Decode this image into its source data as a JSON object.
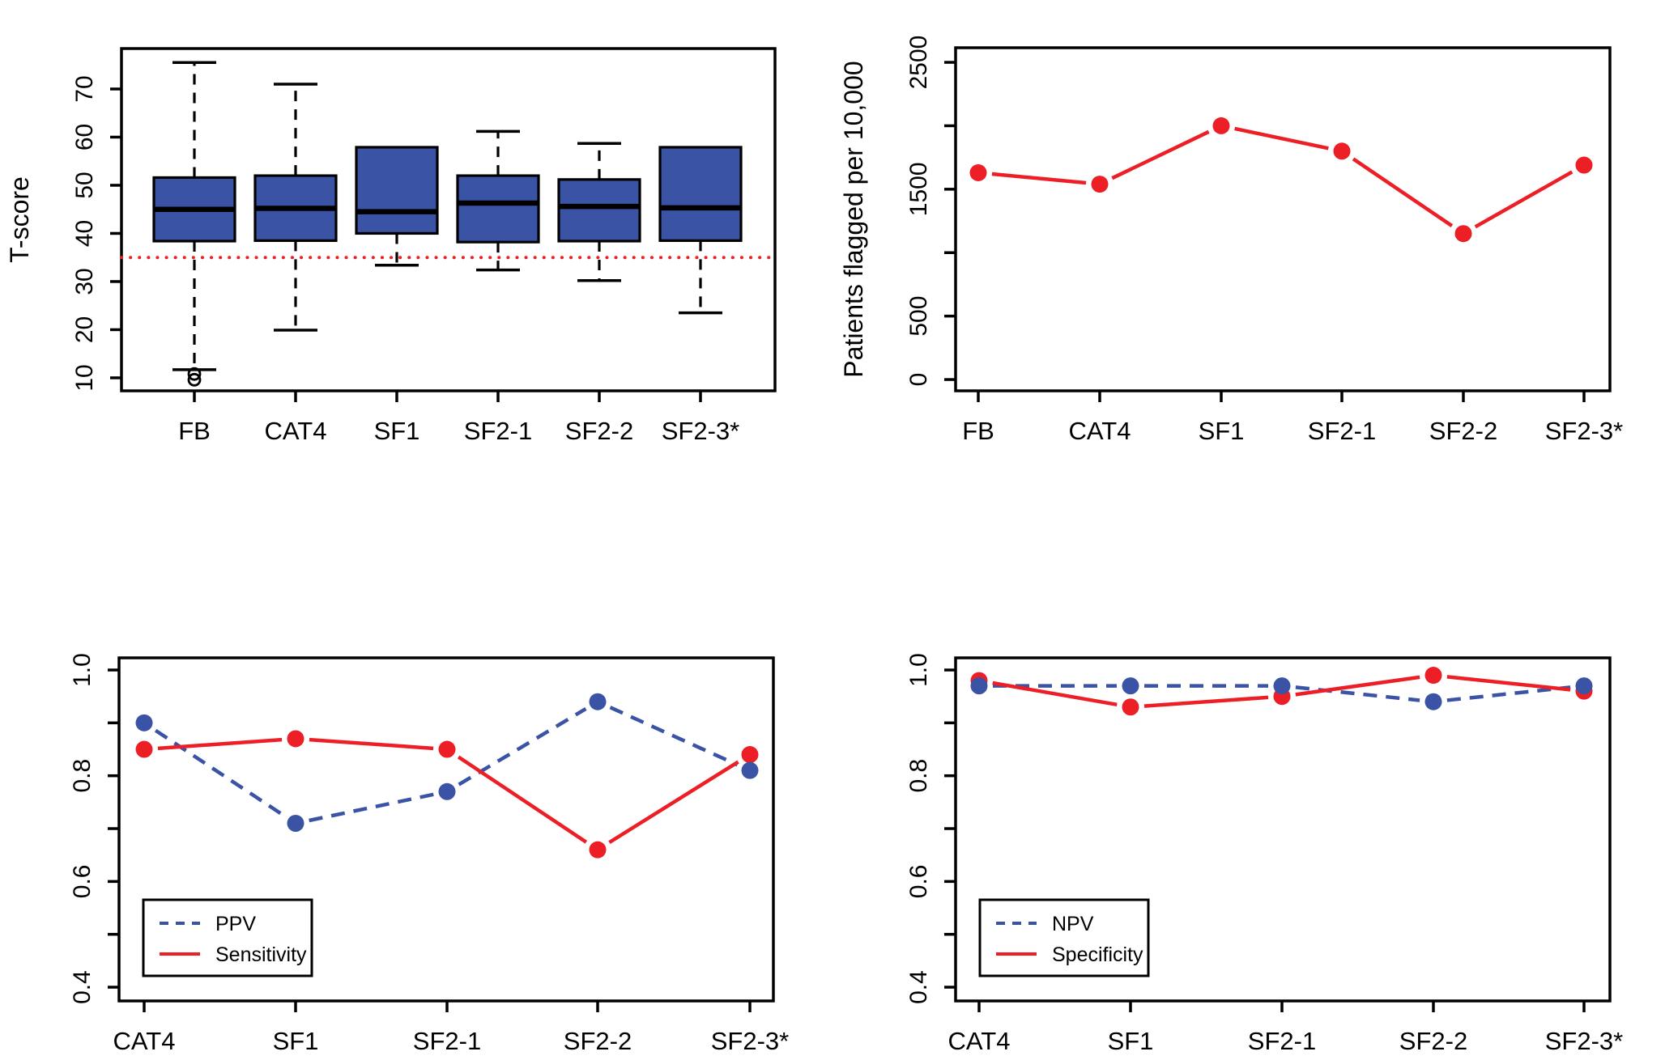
{
  "figure": {
    "colors": {
      "blue": "#3a53a5",
      "red": "#ec1f26",
      "black": "#000000",
      "background": "#ffffff"
    }
  },
  "chart_data": [
    {
      "id": "tscore-boxplot",
      "type": "boxplot",
      "ylabel": "T-score",
      "categories": [
        "FB",
        "CAT4",
        "SF1",
        "SF2-1",
        "SF2-2",
        "SF2-3*"
      ],
      "ylim": [
        7.3,
        78.4
      ],
      "yticks": [
        {
          "v": 10,
          "label": "10"
        },
        {
          "v": 20,
          "label": "20"
        },
        {
          "v": 30,
          "label": "30"
        },
        {
          "v": 40,
          "label": "40"
        },
        {
          "v": 50,
          "label": "50"
        },
        {
          "v": 60,
          "label": "60"
        },
        {
          "v": 70,
          "label": "70"
        }
      ],
      "reference_line": {
        "value": 35,
        "color": "red",
        "style": "dotted"
      },
      "boxes": [
        {
          "category": "FB",
          "whisker_low": 11.7,
          "q1": 38.4,
          "median": 45.0,
          "q3": 51.6,
          "whisker_high": 75.5,
          "outliers": [
            10.8,
            9.6
          ]
        },
        {
          "category": "CAT4",
          "whisker_low": 19.9,
          "q1": 38.5,
          "median": 45.2,
          "q3": 52.0,
          "whisker_high": 71.0,
          "outliers": []
        },
        {
          "category": "SF1",
          "whisker_low": 33.4,
          "q1": 40.0,
          "median": 44.5,
          "q3": 57.9,
          "whisker_high": 57.9,
          "outliers": []
        },
        {
          "category": "SF2-1",
          "whisker_low": 32.4,
          "q1": 38.2,
          "median": 46.3,
          "q3": 52.0,
          "whisker_high": 61.2,
          "outliers": []
        },
        {
          "category": "SF2-2",
          "whisker_low": 30.2,
          "q1": 38.4,
          "median": 45.6,
          "q3": 51.2,
          "whisker_high": 58.7,
          "outliers": []
        },
        {
          "category": "SF2-3*",
          "whisker_low": 23.5,
          "q1": 38.5,
          "median": 45.3,
          "q3": 57.9,
          "whisker_high": 57.9,
          "outliers": []
        }
      ]
    },
    {
      "id": "patients-flagged",
      "type": "line",
      "ylabel": "Patients flagged per 10,000",
      "categories": [
        "FB",
        "CAT4",
        "SF1",
        "SF2-1",
        "SF2-2",
        "SF2-3*"
      ],
      "ylim": [
        -89,
        2615
      ],
      "yticks": [
        {
          "v": 0,
          "label": "0"
        },
        {
          "v": 500,
          "label": "500"
        },
        {
          "v": 1000
        },
        {
          "v": 1500,
          "label": "1500"
        },
        {
          "v": 2000
        },
        {
          "v": 2500,
          "label": "2500"
        }
      ],
      "series": [
        {
          "name": "Patients flagged",
          "color": "red",
          "style": "solid",
          "values": [
            1630,
            1540,
            2000,
            1800,
            1150,
            1690
          ]
        }
      ]
    },
    {
      "id": "ppv-sensitivity",
      "type": "line",
      "ylabel": "",
      "categories": [
        "CAT4",
        "SF1",
        "SF2-1",
        "SF2-2",
        "SF2-3*"
      ],
      "ylim": [
        0.374,
        1.023
      ],
      "yticks": [
        {
          "v": 0.4,
          "label": "0.4"
        },
        {
          "v": 0.5
        },
        {
          "v": 0.6,
          "label": "0.6"
        },
        {
          "v": 0.7
        },
        {
          "v": 0.8,
          "label": "0.8"
        },
        {
          "v": 0.9
        },
        {
          "v": 1.0,
          "label": "1.0"
        }
      ],
      "series": [
        {
          "name": "PPV",
          "color": "blue",
          "style": "dashed",
          "values": [
            0.9,
            0.71,
            0.77,
            0.94,
            0.81
          ]
        },
        {
          "name": "Sensitivity",
          "color": "red",
          "style": "solid",
          "values": [
            0.85,
            0.87,
            0.85,
            0.66,
            0.84
          ]
        }
      ],
      "legend": {
        "position": "bottom-left",
        "entries": [
          {
            "label": "PPV",
            "color": "blue",
            "style": "dashed"
          },
          {
            "label": "Sensitivity",
            "color": "red",
            "style": "solid"
          }
        ]
      }
    },
    {
      "id": "npv-specificity",
      "type": "line",
      "ylabel": "",
      "categories": [
        "CAT4",
        "SF1",
        "SF2-1",
        "SF2-2",
        "SF2-3*"
      ],
      "ylim": [
        0.374,
        1.023
      ],
      "yticks": [
        {
          "v": 0.4,
          "label": "0.4"
        },
        {
          "v": 0.5
        },
        {
          "v": 0.6,
          "label": "0.6"
        },
        {
          "v": 0.7
        },
        {
          "v": 0.8,
          "label": "0.8"
        },
        {
          "v": 0.9
        },
        {
          "v": 1.0,
          "label": "1.0"
        }
      ],
      "series": [
        {
          "name": "NPV",
          "color": "blue",
          "style": "dashed",
          "values": [
            0.97,
            0.97,
            0.97,
            0.94,
            0.97
          ]
        },
        {
          "name": "Specificity",
          "color": "red",
          "style": "solid",
          "values": [
            0.98,
            0.93,
            0.95,
            0.99,
            0.96
          ]
        }
      ],
      "legend": {
        "position": "bottom-left",
        "entries": [
          {
            "label": "NPV",
            "color": "blue",
            "style": "dashed"
          },
          {
            "label": "Specificity",
            "color": "red",
            "style": "solid"
          }
        ]
      }
    }
  ]
}
